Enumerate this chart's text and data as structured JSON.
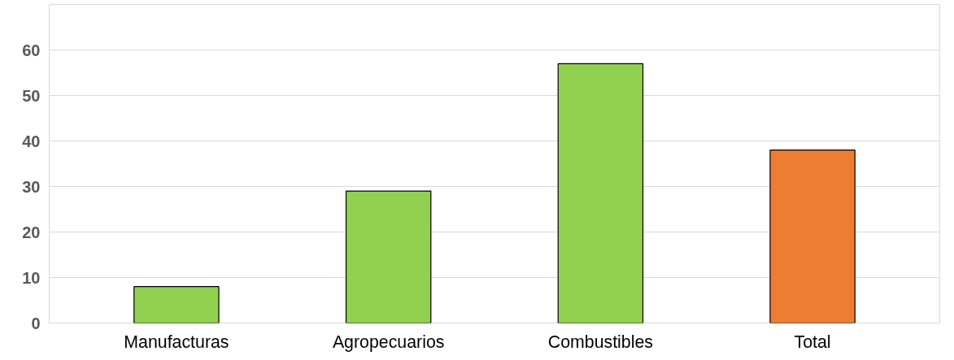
{
  "chart_data": {
    "type": "bar",
    "categories": [
      "Manufacturas",
      "Agropecuarios",
      "Combustibles",
      "Total"
    ],
    "values": [
      8,
      29,
      57,
      38
    ],
    "colors": [
      "#92d050",
      "#92d050",
      "#92d050",
      "#ed7d31"
    ],
    "ylim": [
      0,
      70
    ],
    "yticks": [
      0,
      10,
      20,
      30,
      40,
      50,
      60,
      {
        "value": 70,
        "label": null
      }
    ],
    "grid": "y"
  }
}
